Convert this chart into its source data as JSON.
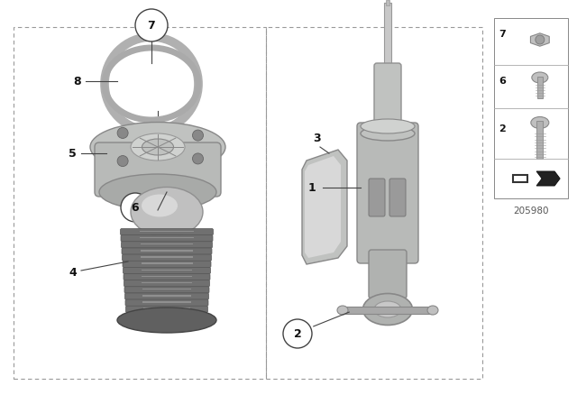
{
  "bg_color": "#ffffff",
  "part_number": "205980",
  "fig_width": 6.4,
  "fig_height": 4.48,
  "dpi": 100,
  "shock_color": "#b8bab8",
  "shock_dark": "#909290",
  "shock_light": "#d8dad8",
  "mount_color": "#b0b2b0",
  "bump_dark": "#606060",
  "bump_mid": "#888888",
  "bump_light": "#b0b0b0",
  "line_color": "#444444",
  "border_color": "#999999"
}
